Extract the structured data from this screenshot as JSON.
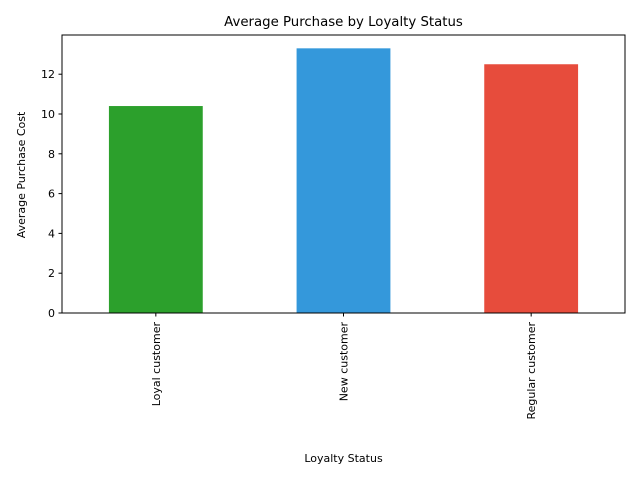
{
  "chart_data": {
    "type": "bar",
    "title": "Average Purchase by Loyalty Status",
    "xlabel": "Loyalty Status",
    "ylabel": "Average Purchase Cost",
    "categories": [
      "Loyal customer",
      "New customer",
      "Regular customer"
    ],
    "values": [
      10.4,
      13.3,
      12.5
    ],
    "colors": [
      "#2ca02c",
      "#3498db",
      "#e74c3c"
    ],
    "ylim": [
      0,
      13.97
    ],
    "yticks": [
      0,
      2,
      4,
      6,
      8,
      10,
      12
    ],
    "grid": false,
    "legend": "none"
  }
}
